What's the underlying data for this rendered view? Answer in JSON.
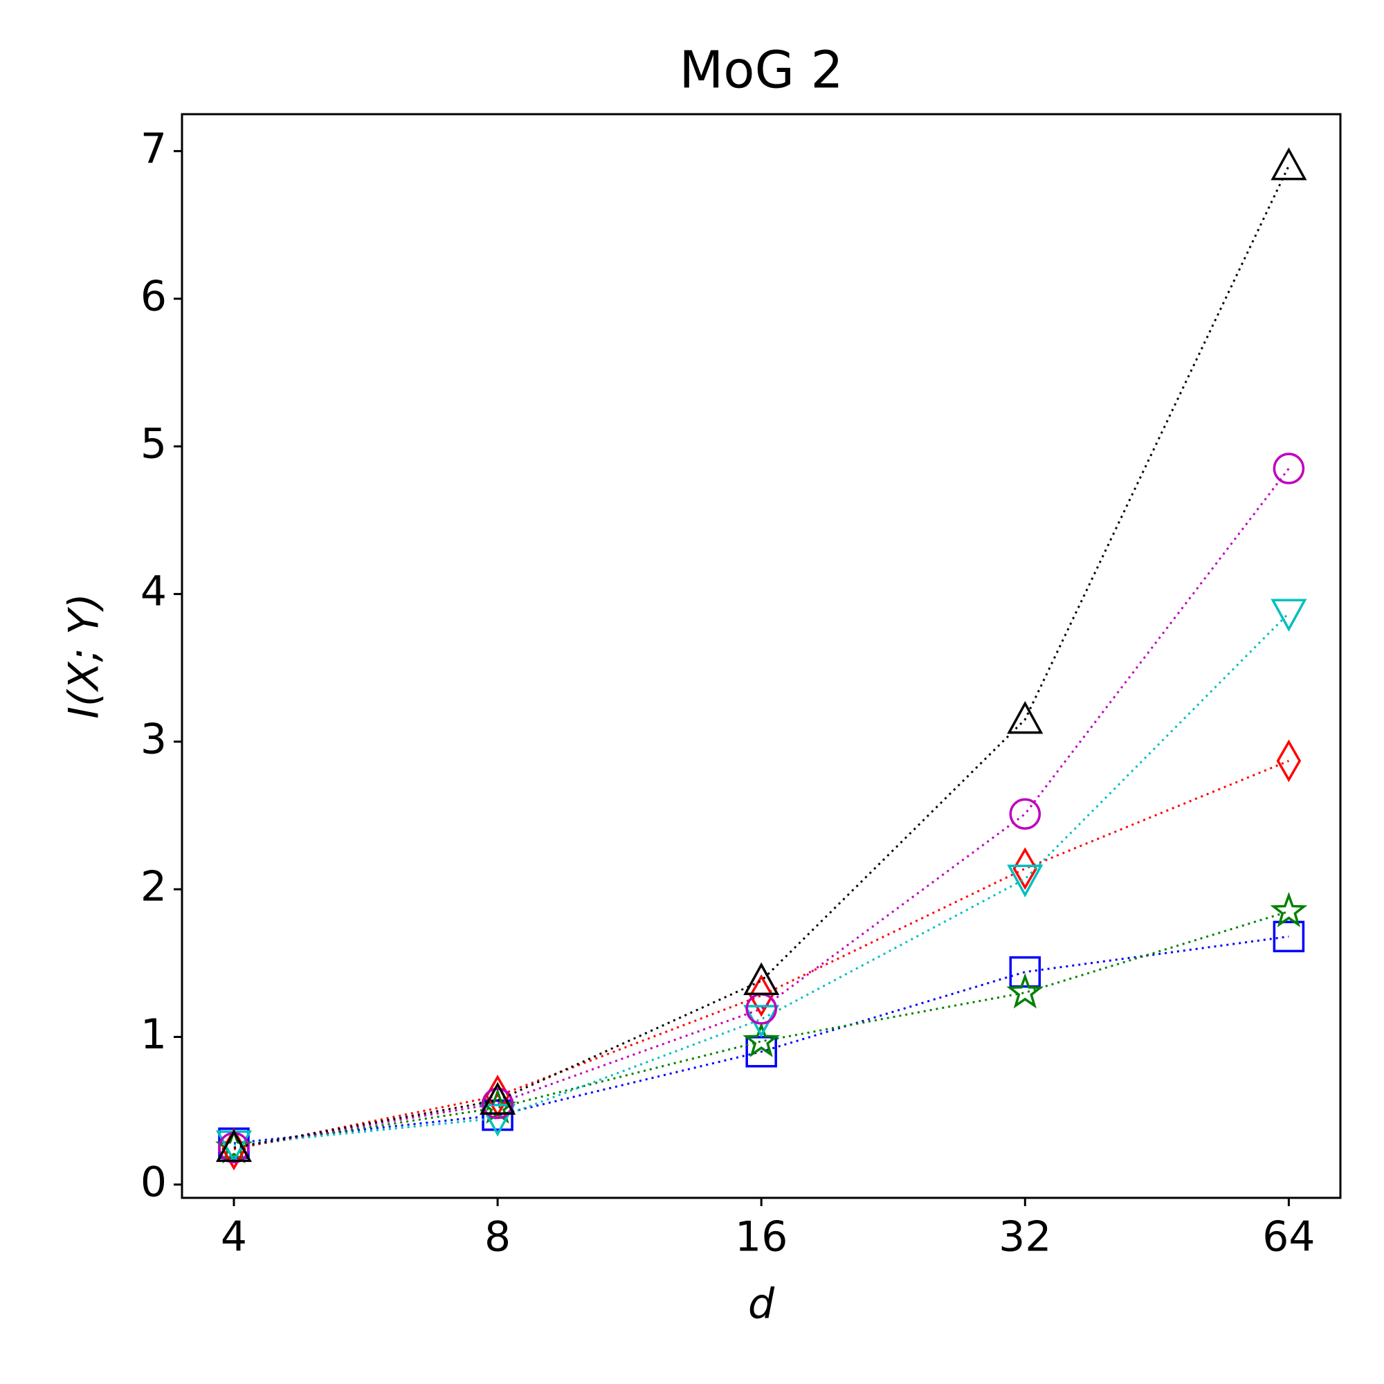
{
  "chart_data": {
    "type": "line",
    "title": "MoG 2",
    "x_label": "d",
    "y_label": "I(X; Y)",
    "x": [
      4,
      8,
      16,
      32,
      64
    ],
    "xscale": "log2",
    "xlim": [
      3.49,
      73.3
    ],
    "xticks": [
      4,
      8,
      16,
      32,
      64
    ],
    "ylim": [
      -0.09,
      7.25
    ],
    "yticks": [
      0,
      1,
      2,
      3,
      4,
      5,
      6,
      7
    ],
    "grid": false,
    "line_style": "dotted",
    "series": [
      {
        "color": "#0000ff",
        "marker": "square",
        "values": [
          0.28,
          0.47,
          0.9,
          1.44,
          1.68
        ]
      },
      {
        "color": "#008000",
        "marker": "star",
        "values": [
          0.25,
          0.52,
          0.97,
          1.3,
          1.85
        ]
      },
      {
        "color": "#ff0000",
        "marker": "diamond",
        "values": [
          0.24,
          0.6,
          1.28,
          2.14,
          2.87
        ]
      },
      {
        "color": "#00bfbf",
        "marker": "triangle-down",
        "values": [
          0.27,
          0.45,
          1.12,
          2.07,
          3.87
        ]
      },
      {
        "color": "#bf00bf",
        "marker": "circle",
        "values": [
          0.25,
          0.55,
          1.19,
          2.51,
          4.85
        ]
      },
      {
        "color": "#000000",
        "marker": "triangle-up",
        "values": [
          0.25,
          0.57,
          1.38,
          3.15,
          6.9
        ]
      }
    ]
  }
}
